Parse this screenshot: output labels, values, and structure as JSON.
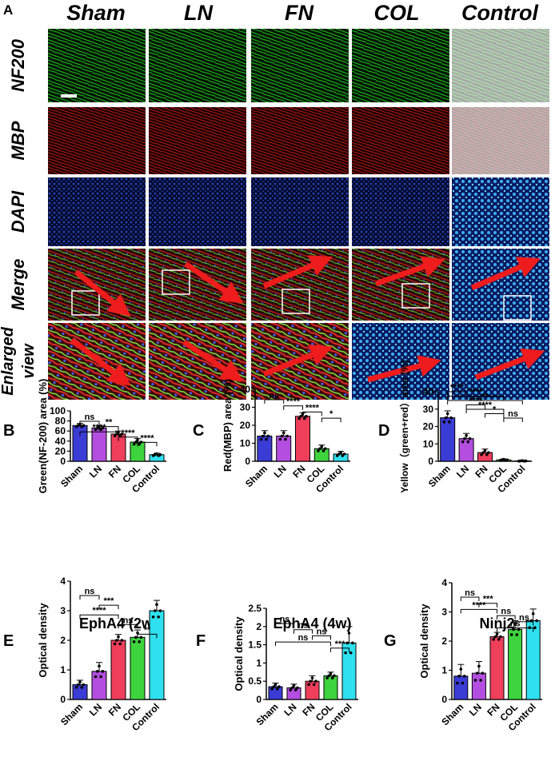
{
  "panel_letters": [
    "A",
    "B",
    "C",
    "D",
    "E",
    "F",
    "G"
  ],
  "micro": {
    "columns": [
      "Sham",
      "LN",
      "FN",
      "COL",
      "Control"
    ],
    "rows": [
      "NF200",
      "MBP",
      "DAPI",
      "Merge"
    ],
    "enlarged_row": [
      "Enlarged",
      "view"
    ]
  },
  "colors": {
    "sham": "#3b3bd6",
    "ln": "#b44ee0",
    "fn": "#ef3f5b",
    "col": "#3ed43e",
    "control": "#2fe0ef",
    "nf200": "#1fc21f",
    "mbp": "#c81a1a",
    "dapi": "#1a3fb0",
    "arrow": "#ee1c1c"
  },
  "chart_data": [
    {
      "id": "B",
      "type": "bar",
      "categories": [
        "Sham",
        "LN",
        "FN",
        "COL",
        "Control"
      ],
      "values": [
        71,
        66,
        54,
        38,
        13
      ],
      "errors": [
        4,
        5,
        6,
        7,
        3
      ],
      "ylabel": "Green(NF-200) area (%)",
      "ylim": [
        0,
        100
      ],
      "yticks": [
        0,
        20,
        40,
        60,
        80,
        100
      ],
      "sig": [
        {
          "a": 0,
          "b": 1,
          "label": "ns"
        },
        {
          "a": 1,
          "b": 2,
          "label": "**"
        },
        {
          "a": 0,
          "b": 2,
          "label": "****"
        },
        {
          "a": 2,
          "b": 3,
          "label": "****"
        },
        {
          "a": 3,
          "b": 4,
          "label": "****"
        }
      ]
    },
    {
      "id": "C",
      "type": "bar",
      "categories": [
        "Sham",
        "LN",
        "FN",
        "COL",
        "Control"
      ],
      "values": [
        14,
        14,
        25,
        7,
        4
      ],
      "errors": [
        3,
        3,
        2,
        2,
        1.5
      ],
      "ylabel": "Red(MBP) area (%)",
      "ylim": [
        0,
        40
      ],
      "yticks": [
        0,
        10,
        20,
        30,
        40
      ],
      "sig": [
        {
          "a": 0,
          "b": 1,
          "label": "ns"
        },
        {
          "a": 1,
          "b": 2,
          "label": "****"
        },
        {
          "a": 2,
          "b": 3,
          "label": "****"
        },
        {
          "a": 3,
          "b": 4,
          "label": "*"
        }
      ]
    },
    {
      "id": "D",
      "type": "bar",
      "categories": [
        "Sham",
        "LN",
        "FN",
        "COL",
        "Control"
      ],
      "values": [
        25,
        13,
        5,
        0.8,
        0.2
      ],
      "errors": [
        4,
        3,
        2,
        0.5,
        0.2
      ],
      "ylabel": "Yellow（green+red）area (%)",
      "ylim": [
        0,
        40
      ],
      "yticks": [
        0,
        10,
        20,
        30,
        40
      ],
      "sig": [
        {
          "a": 0,
          "b": 1,
          "label": "****"
        },
        {
          "a": 0,
          "b": 3,
          "label": "****"
        },
        {
          "a": 0,
          "b": 4,
          "label": "**"
        },
        {
          "a": 1,
          "b": 2,
          "label": "****"
        },
        {
          "a": 1,
          "b": 3,
          "label": "****"
        },
        {
          "a": 2,
          "b": 3,
          "label": "*"
        },
        {
          "a": 3,
          "b": 4,
          "label": "ns"
        }
      ]
    },
    {
      "id": "E",
      "type": "bar",
      "title": "EphA4 (2w)",
      "categories": [
        "Sham",
        "LN",
        "FN",
        "COL",
        "Control"
      ],
      "values": [
        0.5,
        0.95,
        2.0,
        2.1,
        3.0
      ],
      "errors": [
        0.15,
        0.3,
        0.2,
        0.25,
        0.35
      ],
      "ylabel": "Optical density",
      "ylim": [
        0,
        4
      ],
      "yticks": [
        0,
        1,
        2,
        3,
        4
      ],
      "sig": [
        {
          "a": 0,
          "b": 1,
          "label": "ns"
        },
        {
          "a": 1,
          "b": 2,
          "label": "***"
        },
        {
          "a": 0,
          "b": 2,
          "label": "****"
        },
        {
          "a": 2,
          "b": 3,
          "label": "ns"
        },
        {
          "a": 3,
          "b": 4,
          "label": "**"
        }
      ]
    },
    {
      "id": "F",
      "type": "bar",
      "title": "EphA4 (4w)",
      "categories": [
        "Sham",
        "LN",
        "FN",
        "COL",
        "Control"
      ],
      "values": [
        0.35,
        0.32,
        0.5,
        0.65,
        1.55
      ],
      "errors": [
        0.1,
        0.1,
        0.15,
        0.1,
        0.45
      ],
      "ylabel": "Optical density",
      "ylim": [
        0,
        2.5
      ],
      "yticks": [
        0,
        0.5,
        1.0,
        1.5,
        2.0,
        2.5
      ],
      "sig": [
        {
          "a": 0,
          "b": 1,
          "label": "ns"
        },
        {
          "a": 1,
          "b": 2,
          "label": "ns"
        },
        {
          "a": 2,
          "b": 3,
          "label": "ns"
        },
        {
          "a": 0,
          "b": 3,
          "label": "ns"
        },
        {
          "a": 3,
          "b": 4,
          "label": "***"
        }
      ]
    },
    {
      "id": "G",
      "type": "bar",
      "title": "Ninj2",
      "categories": [
        "Sham",
        "LN",
        "FN",
        "COL",
        "Control"
      ],
      "values": [
        0.8,
        0.9,
        2.15,
        2.4,
        2.7
      ],
      "errors": [
        0.4,
        0.4,
        0.15,
        0.3,
        0.4
      ],
      "ylabel": "Optical density",
      "ylim": [
        0,
        4
      ],
      "yticks": [
        0,
        1,
        2,
        3,
        4
      ],
      "sig": [
        {
          "a": 0,
          "b": 1,
          "label": "ns"
        },
        {
          "a": 1,
          "b": 2,
          "label": "***"
        },
        {
          "a": 0,
          "b": 2,
          "label": "****"
        },
        {
          "a": 2,
          "b": 3,
          "label": "ns"
        },
        {
          "a": 3,
          "b": 4,
          "label": "ns"
        },
        {
          "a": 2,
          "b": 4,
          "label": "ns"
        }
      ]
    }
  ]
}
